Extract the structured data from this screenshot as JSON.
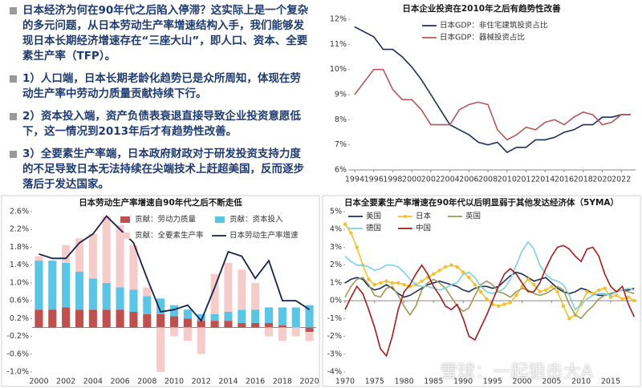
{
  "bullets": [
    "日本经济为何在90年代之后陷入停滞？这实际上是一个复杂的多元问题，从日本劳动生产率增速结构入手，我们能够发现日本长期经济增速存在“三座大山”，即人口、资本、全要素生产率（TFP）。",
    "1）人口端，日本长期老龄化趋势已是众所周知，体现在劳动生产率中劳动力质量贡献持续下行。",
    "2）资本投入端，资产负债表衰退直接导致企业投资意愿低下，这一情况到2013年后才有趋势性改善。",
    "3）全要素生产率端，日本政府财政对于研发投资支持力度的不足导致日本无法持续在尖端技术上赶超美国，反而逐步落后于发达国家。"
  ],
  "watermark": "雪球：一起狙击大A",
  "chart_data": [
    {
      "type": "line",
      "title": "日本企业投资在2010年之后有趋势性改善",
      "legend": "upper right",
      "x": [
        1994,
        1995,
        1996,
        1997,
        1998,
        1999,
        2000,
        2001,
        2002,
        2003,
        2004,
        2005,
        2006,
        2007,
        2008,
        2009,
        2010,
        2011,
        2012,
        2013,
        2014,
        2015,
        2016,
        2017,
        2018,
        2019,
        2020,
        2021,
        2022,
        2023
      ],
      "xlim": [
        1993.5,
        2023.5
      ],
      "xticks": [
        1994,
        1996,
        1998,
        2000,
        2002,
        2004,
        2006,
        2008,
        2010,
        2012,
        2014,
        2016,
        2018,
        2020,
        2022
      ],
      "ylim": [
        6,
        12
      ],
      "yticks": [
        {
          "value": 6,
          "label": "6%"
        },
        {
          "value": 7,
          "label": "7%"
        },
        {
          "value": 8,
          "label": "8%"
        },
        {
          "value": 9,
          "label": "9%"
        },
        {
          "value": 10,
          "label": "10%"
        },
        {
          "value": 11,
          "label": "11%"
        },
        {
          "value": 12,
          "label": "12%"
        }
      ],
      "series": [
        {
          "name": "日本GDP：非住宅建筑投资占比",
          "color": "#1f2f5c",
          "values": [
            11.7,
            11.5,
            11.3,
            10.8,
            10.8,
            10.5,
            10.1,
            9.6,
            9.0,
            8.4,
            7.8,
            7.6,
            7.4,
            7.1,
            7.0,
            7.1,
            6.7,
            6.9,
            6.9,
            7.2,
            7.2,
            7.3,
            7.5,
            7.6,
            7.8,
            7.8,
            8.1,
            8.1,
            8.2,
            8.2
          ]
        },
        {
          "name": "日本GDP：器械投资占比",
          "color": "#b5565a",
          "values": [
            9.0,
            9.5,
            10.0,
            10.0,
            9.2,
            8.8,
            8.8,
            8.4,
            7.8,
            7.8,
            7.8,
            8.4,
            8.6,
            8.7,
            8.6,
            7.6,
            7.2,
            7.4,
            7.7,
            7.6,
            7.9,
            8.0,
            7.8,
            8.1,
            8.3,
            8.2,
            7.8,
            7.9,
            8.2,
            8.2
          ]
        }
      ]
    },
    {
      "type": "bar",
      "title": "日本劳动生产率增速自90年代之后不断走低",
      "legend": "upper center",
      "categories": [
        "2000",
        null,
        "2002",
        null,
        "2004",
        null,
        "2006",
        null,
        "2008",
        null,
        "2010",
        null,
        "2012",
        null,
        "2014",
        null,
        "2016",
        null,
        "2018",
        null,
        "2020"
      ],
      "ylim": [
        -1.0,
        2.6
      ],
      "yticks": [
        {
          "value": -1.0,
          "label": "-1.0%"
        },
        {
          "value": -0.6,
          "label": "-0.6%"
        },
        {
          "value": -0.2,
          "label": "-0.2%"
        },
        {
          "value": 0.2,
          "label": "0.2%"
        },
        {
          "value": 0.6,
          "label": "0.6%"
        },
        {
          "value": 1.0,
          "label": "1.0%"
        },
        {
          "value": 1.4,
          "label": "1.4%"
        },
        {
          "value": 1.8,
          "label": "1.8%"
        },
        {
          "value": 2.2,
          "label": "2.2%"
        },
        {
          "value": 2.6,
          "label": "2.6%"
        }
      ],
      "series": [
        {
          "name": "贡献：劳动力质量",
          "color": "#c0504d",
          "values": [
            0.4,
            0.4,
            0.45,
            0.4,
            0.4,
            0.4,
            0.4,
            0.35,
            0.3,
            0.3,
            0.25,
            0.2,
            0.15,
            0.15,
            0.15,
            0.1,
            0.1,
            0.1,
            0.05,
            0.0,
            -0.1
          ]
        },
        {
          "name": "贡献：资本投入",
          "color": "#5bc5e6",
          "values": [
            1.1,
            1.1,
            1.0,
            0.85,
            0.7,
            0.6,
            0.5,
            0.5,
            0.4,
            0.35,
            0.25,
            0.2,
            0.15,
            0.15,
            0.2,
            0.3,
            0.3,
            0.35,
            0.4,
            0.45,
            0.5
          ]
        },
        {
          "name": "贡献：全要素生产率",
          "color": "#f6cccb",
          "values": [
            0.1,
            0.0,
            0.4,
            0.75,
            1.0,
            1.5,
            1.4,
            1.0,
            0.2,
            -1.0,
            -0.2,
            -0.3,
            -0.6,
            0.9,
            1.1,
            0.9,
            0.6,
            -0.2,
            -0.3,
            -0.2,
            -0.2
          ]
        },
        {
          "name": "日本劳动生产率增速",
          "color": "#16214d",
          "type": "line",
          "values": [
            1.65,
            1.55,
            1.55,
            1.9,
            2.1,
            2.5,
            2.2,
            1.9,
            1.1,
            0.35,
            0.4,
            0.5,
            0.15,
            0.9,
            1.7,
            1.6,
            1.1,
            1.5,
            0.6,
            0.6,
            0.4
          ]
        }
      ]
    },
    {
      "type": "line",
      "title": "日本全要素生产率增速在90年代以后明显弱于其他发达经济体（5YMA）",
      "legend": "upper left",
      "x": [
        1970,
        1971,
        1972,
        1973,
        1974,
        1975,
        1976,
        1977,
        1978,
        1979,
        1980,
        1981,
        1982,
        1983,
        1984,
        1985,
        1986,
        1987,
        1988,
        1989,
        1990,
        1991,
        1992,
        1993,
        1994,
        1995,
        1996,
        1997,
        1998,
        1999,
        2000,
        2001,
        2002,
        2003,
        2004,
        2005,
        2006,
        2007,
        2008,
        2009,
        2010,
        2011,
        2012,
        2013,
        2014,
        2015,
        2016,
        2017,
        2018,
        2019
      ],
      "xlim": [
        1970,
        2019.5
      ],
      "xticks": [
        1970,
        1975,
        1980,
        1985,
        1990,
        1995,
        2000,
        2005,
        2010,
        2015
      ],
      "ylim": [
        -4,
        5
      ],
      "yticks": [
        {
          "value": -4,
          "label": "-4%"
        },
        {
          "value": -3,
          "label": "-3%"
        },
        {
          "value": -2,
          "label": "-2%"
        },
        {
          "value": -1,
          "label": "-1%"
        },
        {
          "value": 0,
          "label": "0%"
        },
        {
          "value": 1,
          "label": "1%"
        },
        {
          "value": 2,
          "label": "2%"
        },
        {
          "value": 3,
          "label": "3%"
        },
        {
          "value": 4,
          "label": "4%"
        },
        {
          "value": 5,
          "label": "5%"
        }
      ],
      "series": [
        {
          "name": "美国",
          "color": "#1f2f5c",
          "values": [
            1.0,
            1.2,
            1.3,
            1.2,
            0.8,
            0.6,
            0.7,
            0.9,
            0.7,
            0.4,
            0.2,
            0.3,
            0.5,
            0.7,
            0.9,
            1.0,
            1.1,
            1.0,
            0.9,
            0.8,
            0.6,
            0.5,
            0.7,
            0.8,
            0.8,
            0.7,
            0.8,
            1.1,
            1.4,
            1.6,
            1.5,
            1.3,
            1.1,
            1.2,
            1.3,
            1.0,
            0.7,
            0.5,
            0.4,
            0.5,
            0.7,
            0.6,
            0.4,
            0.3,
            0.3,
            0.4,
            0.5,
            0.6,
            0.6,
            0.7
          ]
        },
        {
          "name": "日本",
          "color": "#f2c12e",
          "marker": true,
          "values": [
            4.3,
            3.8,
            3.0,
            2.0,
            1.2,
            0.9,
            1.0,
            1.1,
            1.0,
            1.0,
            0.9,
            0.8,
            0.9,
            1.1,
            1.3,
            1.5,
            1.7,
            1.9,
            2.0,
            1.9,
            1.6,
            1.3,
            0.9,
            0.5,
            0.1,
            -0.2,
            -0.3,
            -0.2,
            -0.1,
            0.3,
            0.8,
            1.2,
            0.9,
            0.5,
            0.6,
            0.8,
            0.5,
            -0.3,
            -1.0,
            -0.8,
            -0.2,
            0.5,
            0.4,
            0.6,
            0.7,
            0.2,
            0.3,
            0.1,
            0.2,
            0.0
          ]
        },
        {
          "name": "英国",
          "color": "#9c9a55",
          "values": [
            0.2,
            0.8,
            1.2,
            1.3,
            0.9,
            0.3,
            0.2,
            0.7,
            0.8,
            0.3,
            -0.3,
            -0.8,
            -0.3,
            0.6,
            1.0,
            1.2,
            1.0,
            0.7,
            0.2,
            -0.3,
            -0.6,
            -0.4,
            0.3,
            0.9,
            1.1,
            0.9,
            0.5,
            0.4,
            0.2,
            0.5,
            0.7,
            0.6,
            0.4,
            0.3,
            0.4,
            0.6,
            0.8,
            0.6,
            -0.2,
            -0.8,
            -1.0,
            -0.6,
            -0.3,
            0.1,
            0.3,
            0.4,
            0.5,
            0.6,
            0.5,
            0.4
          ]
        },
        {
          "name": "德国",
          "color": "#7fcfe3",
          "values": [
            2.5,
            2.2,
            2.0,
            2.0,
            1.9,
            1.7,
            1.8,
            2.0,
            2.0,
            1.9,
            1.6,
            1.2,
            0.9,
            0.8,
            0.8,
            0.7,
            0.6,
            0.7,
            0.9,
            1.0,
            1.5,
            1.6,
            1.3,
            0.8,
            0.5,
            0.4,
            0.5,
            0.7,
            1.2,
            2.0,
            2.8,
            3.3,
            2.9,
            2.0,
            1.5,
            1.2,
            1.1,
            0.9,
            0.3,
            -0.5,
            -0.2,
            0.1,
            0.3,
            0.4,
            0.4,
            0.3,
            0.5,
            0.6,
            0.7,
            0.6
          ]
        },
        {
          "name": "中国",
          "color": "#a31c1c",
          "values": [
            -0.5,
            0.2,
            0.8,
            0.4,
            -0.5,
            -1.5,
            -2.7,
            -3.1,
            -2.0,
            -0.5,
            0.5,
            0.9,
            1.5,
            2.0,
            1.5,
            0.8,
            0.3,
            -0.3,
            -0.5,
            -0.2,
            -1.0,
            -2.0,
            -2.2,
            -1.5,
            -0.8,
            0.0,
            0.8,
            1.5,
            1.8,
            1.5,
            1.0,
            0.5,
            0.5,
            1.0,
            1.8,
            2.5,
            3.0,
            3.1,
            2.9,
            2.5,
            2.2,
            2.9,
            3.0,
            2.5,
            1.5,
            0.8,
            0.5,
            0.8,
            -0.2,
            -0.9
          ]
        }
      ]
    }
  ]
}
